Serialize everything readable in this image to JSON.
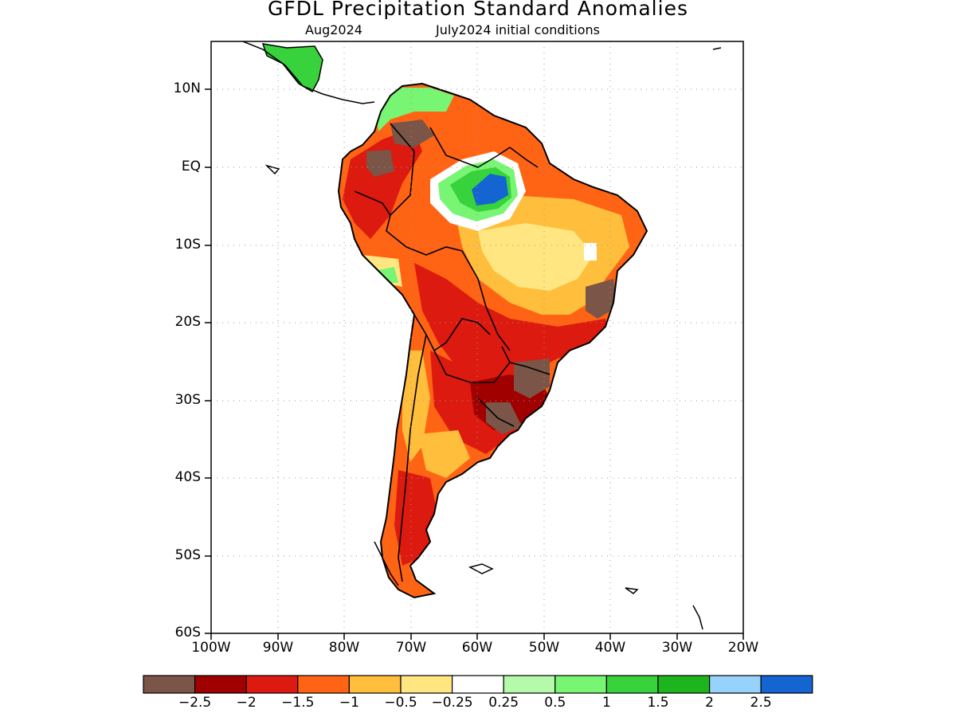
{
  "title": "GFDL Precipitation Standard Anomalies",
  "subtitle_left": "Aug2024",
  "subtitle_right": "July2024 initial conditions",
  "lat_labels": [
    "10N",
    "EQ",
    "10S",
    "20S",
    "30S",
    "40S",
    "50S",
    "60S"
  ],
  "lon_labels": [
    "100W",
    "90W",
    "80W",
    "70W",
    "60W",
    "50W",
    "40W",
    "30W",
    "20W"
  ],
  "colorbar": {
    "colors": [
      "#7a5548",
      "#a00000",
      "#dd1a10",
      "#ff6414",
      "#ffbe3c",
      "#ffe680",
      "#ffffff",
      "#b4faaa",
      "#78f573",
      "#37d23c",
      "#1eb41e",
      "#96d2fa",
      "#1464d2"
    ],
    "labels": [
      "−2.5",
      "−2",
      "−1.5",
      "−1",
      "−0.5",
      "−0.25",
      "0.25",
      "0.5",
      "1",
      "1.5",
      "2",
      "2.5"
    ]
  }
}
